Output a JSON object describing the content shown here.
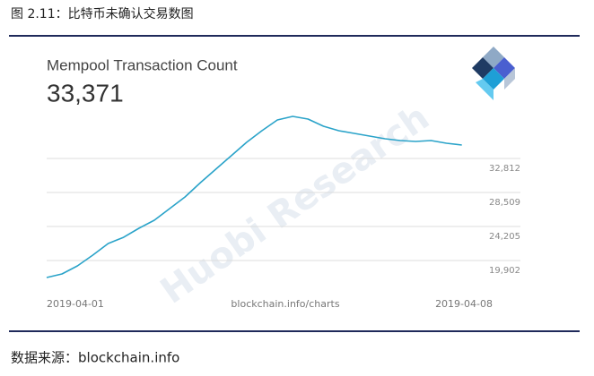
{
  "header": {
    "title": "图 2.11：比特币未确认交易数图"
  },
  "chart_data": {
    "type": "line",
    "title": "Mempool Transaction Count",
    "subtitle": "33,371",
    "source_label": "blockchain.info/charts",
    "watermark": "Huobi Research",
    "categories": [
      "2019-04-01",
      null,
      null,
      null,
      null,
      null,
      null,
      null,
      null,
      null,
      null,
      null,
      null,
      null,
      null,
      null,
      null,
      null,
      null,
      null,
      null,
      null,
      null,
      null,
      null,
      null,
      null,
      null,
      null,
      "2019-04-08"
    ],
    "series": [
      {
        "name": "Mempool Transaction Count",
        "color": "#2aa3c9",
        "values": [
          17750,
          18200,
          19220,
          20580,
          22050,
          22840,
          23980,
          25000,
          26470,
          27940,
          29750,
          31450,
          33150,
          34850,
          36320,
          37680,
          38130,
          37790,
          36890,
          36320,
          35980,
          35640,
          35300,
          35080,
          34960,
          35080,
          34740,
          34510,
          null,
          null
        ]
      }
    ],
    "ylim": [
      16620,
      39830
    ],
    "yticks": [
      {
        "value": 19902,
        "label": "19,902"
      },
      {
        "value": 24205,
        "label": "24,205"
      },
      {
        "value": 28509,
        "label": "28,509"
      },
      {
        "value": 32812,
        "label": "32,812"
      }
    ],
    "grid": true
  },
  "footer": {
    "source": "数据来源：blockchain.info"
  }
}
